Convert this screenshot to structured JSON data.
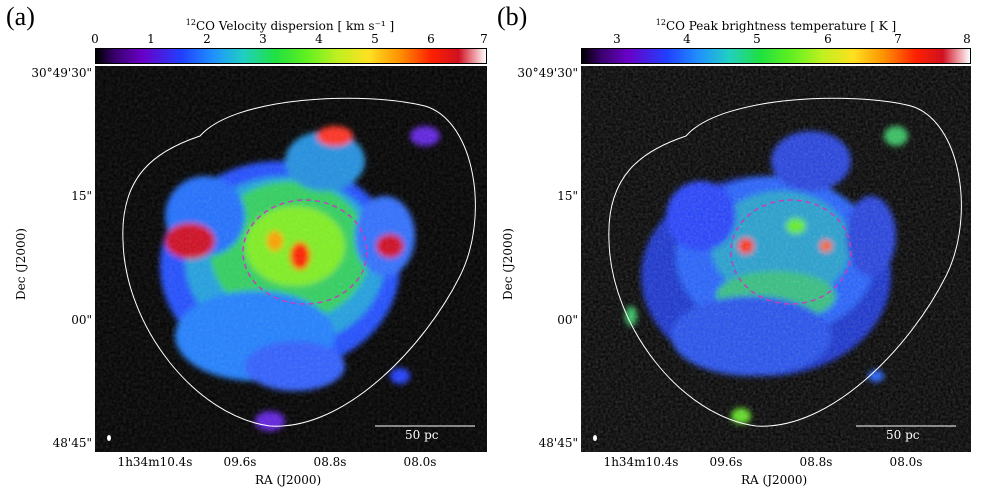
{
  "panels": [
    {
      "label": "(a)",
      "colorbar_title_sup": "12",
      "colorbar_title": "CO Velocity dispersion [ km s⁻¹ ]",
      "colorbar_ticks": [
        "0",
        "1",
        "2",
        "3",
        "4",
        "5",
        "6",
        "7"
      ],
      "dec_ticks": [
        "30°49'30\"",
        "15\"",
        "00\"",
        "48'45\""
      ],
      "ra_ticks": [
        "1h34m10.4s",
        "09.6s",
        "08.8s",
        "08.0s"
      ],
      "xlabel": "RA (J2000)",
      "ylabel": "Dec (J2000)",
      "scalebar": "50 pc"
    },
    {
      "label": "(b)",
      "colorbar_title_sup": "12",
      "colorbar_title": "CO Peak brightness temperature [ K ]",
      "colorbar_ticks": [
        "3",
        "4",
        "5",
        "6",
        "7",
        "8"
      ],
      "dec_ticks": [
        "30°49'30\"",
        "15\"",
        "00\"",
        "48'45\""
      ],
      "ra_ticks": [
        "1h34m10.4s",
        "09.6s",
        "08.8s",
        "08.0s"
      ],
      "xlabel": "RA (J2000)",
      "ylabel": "Dec (J2000)",
      "scalebar": "50 pc"
    }
  ],
  "colors": {
    "background": "#000000",
    "contour": "#ffffff",
    "circle": "#c040c0"
  }
}
